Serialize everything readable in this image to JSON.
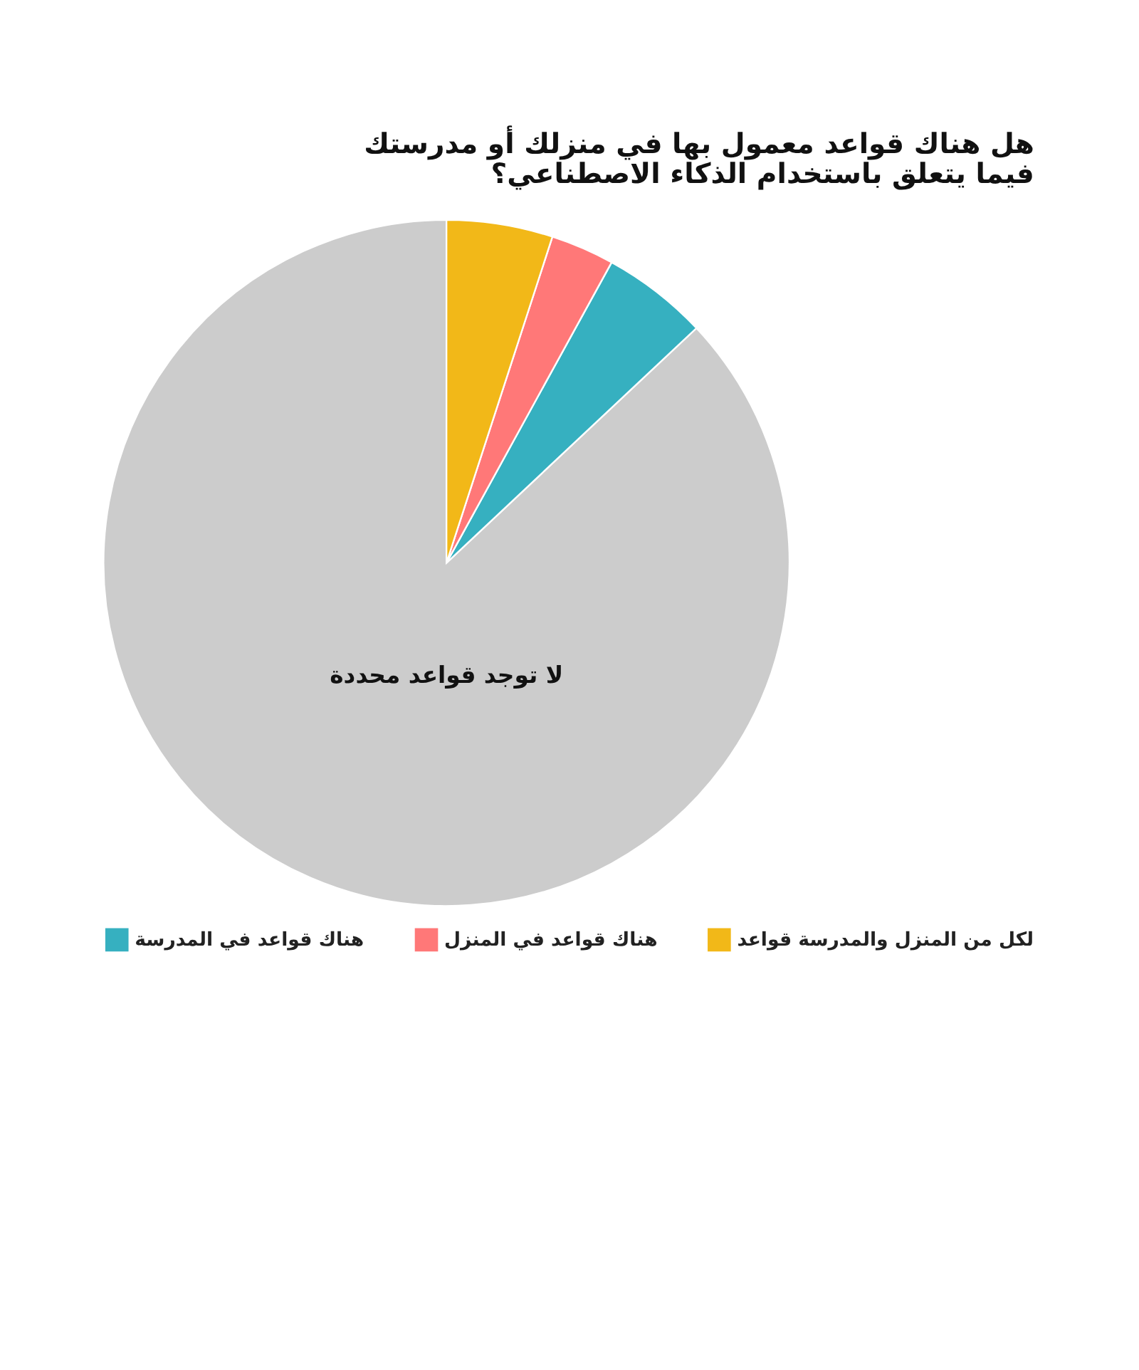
{
  "chart_data": {
    "type": "pie",
    "title": [
      "هل هناك قواعد معمول بها في منزلك أو مدرستك",
      "فيما يتعلق باستخدام الذكاء الاصطناعي؟"
    ],
    "categories": [
      "لا توجد قواعد محددة",
      "هناك قواعد في المدرسة",
      "هناك قواعد في المنزل",
      "لكل من المنزل والمدرسة قواعد"
    ],
    "values": [
      87,
      5,
      3,
      5
    ],
    "colors": [
      "#cccccc",
      "#36b0c0",
      "#ff7878",
      "#f2b818"
    ],
    "legend": "bottom"
  }
}
